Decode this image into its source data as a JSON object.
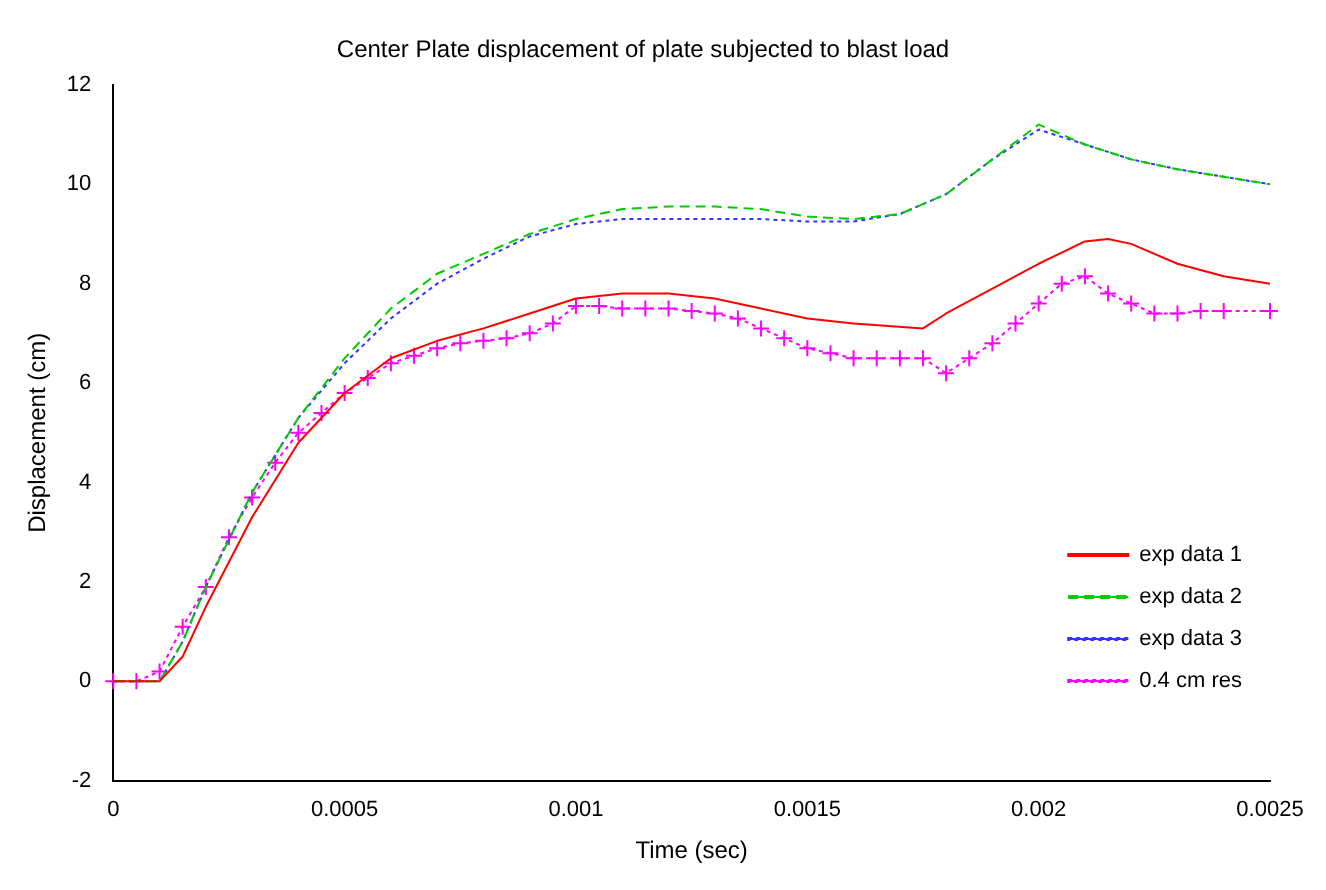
{
  "chart_data": {
    "type": "line",
    "title": "Center Plate displacement of plate subjected to blast load",
    "xlabel": "Time (sec)",
    "ylabel": "Displacement (cm)",
    "xlim": [
      0,
      0.0025
    ],
    "xticks": [
      0,
      0.0005,
      0.001,
      0.0015,
      0.002,
      0.0025
    ],
    "ylim": [
      -2,
      12
    ],
    "yticks": [
      -2,
      0,
      2,
      4,
      6,
      8,
      10,
      12
    ],
    "grid": false,
    "legend": "bottom right",
    "series": [
      {
        "name": "exp data 1",
        "color": "#ff0000",
        "line_style": "solid",
        "marker": "none",
        "x": [
          0,
          0.0001,
          0.00015,
          0.0002,
          0.0003,
          0.0004,
          0.0005,
          0.0006,
          0.0007,
          0.0008,
          0.0009,
          0.001,
          0.0011,
          0.0012,
          0.0013,
          0.0014,
          0.0015,
          0.0016,
          0.00175,
          0.0018,
          0.0019,
          0.002,
          0.0021,
          0.00215,
          0.0022,
          0.0023,
          0.0024,
          0.0025
        ],
        "values": [
          0,
          0,
          0.5,
          1.5,
          3.3,
          4.8,
          5.8,
          6.5,
          6.85,
          7.1,
          7.4,
          7.7,
          7.8,
          7.8,
          7.7,
          7.5,
          7.3,
          7.2,
          7.1,
          7.4,
          7.9,
          8.4,
          8.85,
          8.9,
          8.8,
          8.4,
          8.15,
          8.0
        ]
      },
      {
        "name": "exp data 2",
        "color": "#00cc00",
        "line_style": "dashed",
        "marker": "none",
        "x": [
          0,
          0.0001,
          0.00015,
          0.0002,
          0.0003,
          0.0004,
          0.0005,
          0.0006,
          0.0007,
          0.0008,
          0.0009,
          0.001,
          0.0011,
          0.0012,
          0.0013,
          0.0014,
          0.0015,
          0.0016,
          0.0017,
          0.0018,
          0.0019,
          0.002,
          0.0021,
          0.0022,
          0.0023,
          0.0024,
          0.0025
        ],
        "values": [
          0,
          0,
          0.8,
          1.9,
          3.8,
          5.3,
          6.5,
          7.5,
          8.2,
          8.6,
          9.0,
          9.3,
          9.5,
          9.55,
          9.55,
          9.5,
          9.35,
          9.3,
          9.4,
          9.8,
          10.5,
          11.2,
          10.8,
          10.5,
          10.3,
          10.15,
          10.0
        ]
      },
      {
        "name": "exp data 3",
        "color": "#3333ff",
        "line_style": "dotted",
        "marker": "none",
        "x": [
          0,
          0.0001,
          0.00015,
          0.0002,
          0.0003,
          0.0004,
          0.0005,
          0.0006,
          0.0007,
          0.0008,
          0.0009,
          0.001,
          0.0011,
          0.0012,
          0.0013,
          0.0014,
          0.0015,
          0.0016,
          0.0017,
          0.0018,
          0.0019,
          0.002,
          0.0021,
          0.0022,
          0.0023,
          0.0024,
          0.0025
        ],
        "values": [
          0,
          0,
          0.8,
          1.9,
          3.8,
          5.3,
          6.4,
          7.3,
          8.0,
          8.5,
          8.95,
          9.2,
          9.3,
          9.3,
          9.3,
          9.3,
          9.25,
          9.25,
          9.4,
          9.8,
          10.5,
          11.1,
          10.8,
          10.5,
          10.3,
          10.15,
          10.0
        ]
      },
      {
        "name": "0.4 cm res",
        "color": "#ff00ff",
        "line_style": "dotted",
        "marker": "cross",
        "x": [
          0,
          5e-05,
          0.0001,
          0.00015,
          0.0002,
          0.00025,
          0.0003,
          0.00035,
          0.0004,
          0.00045,
          0.0005,
          0.00055,
          0.0006,
          0.00065,
          0.0007,
          0.00075,
          0.0008,
          0.00085,
          0.0009,
          0.00095,
          0.001,
          0.00105,
          0.0011,
          0.00115,
          0.0012,
          0.00125,
          0.0013,
          0.00135,
          0.0014,
          0.00145,
          0.0015,
          0.00155,
          0.0016,
          0.00165,
          0.0017,
          0.00175,
          0.0018,
          0.00185,
          0.0019,
          0.00195,
          0.002,
          0.00205,
          0.0021,
          0.00215,
          0.0022,
          0.00225,
          0.0023,
          0.00235,
          0.0024,
          0.0025
        ],
        "values": [
          0,
          0,
          0.2,
          1.1,
          1.9,
          2.9,
          3.7,
          4.4,
          5.0,
          5.4,
          5.8,
          6.1,
          6.4,
          6.55,
          6.7,
          6.8,
          6.85,
          6.9,
          7.0,
          7.2,
          7.55,
          7.55,
          7.5,
          7.5,
          7.5,
          7.45,
          7.4,
          7.3,
          7.1,
          6.9,
          6.7,
          6.6,
          6.5,
          6.5,
          6.5,
          6.5,
          6.2,
          6.5,
          6.8,
          7.2,
          7.6,
          8.0,
          8.15,
          7.8,
          7.6,
          7.4,
          7.4,
          7.45,
          7.45,
          7.45
        ]
      }
    ]
  }
}
